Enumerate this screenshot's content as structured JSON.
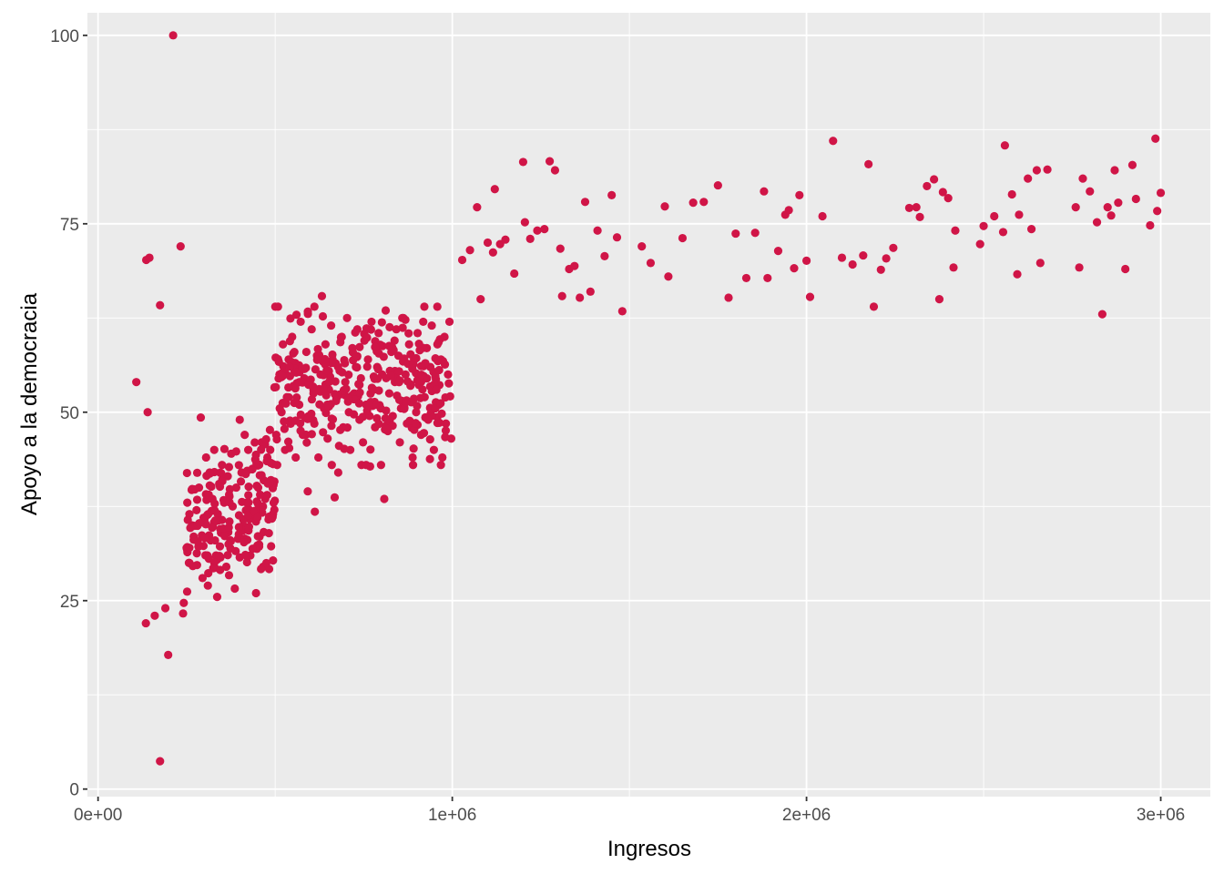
{
  "chart_data": {
    "type": "scatter",
    "xlabel": "Ingresos",
    "ylabel": "Apoyo a la democracia",
    "xlim": [
      -30000,
      3140000
    ],
    "ylim": [
      -1,
      103
    ],
    "x_ticks": [
      {
        "value": 0,
        "label": "0e+00"
      },
      {
        "value": 1000000,
        "label": "1e+06"
      },
      {
        "value": 2000000,
        "label": "2e+06"
      },
      {
        "value": 3000000,
        "label": "3e+06"
      }
    ],
    "y_ticks": [
      {
        "value": 0,
        "label": "0"
      },
      {
        "value": 25,
        "label": "25"
      },
      {
        "value": 50,
        "label": "50"
      },
      {
        "value": 75,
        "label": "75"
      },
      {
        "value": 100,
        "label": "100"
      }
    ],
    "grid": true,
    "panel_background": "#ebebeb",
    "gridline_color": "#ffffff",
    "point_color": "#d01547",
    "series": [
      {
        "points": [
          [
            108000,
            54
          ],
          [
            136000,
            70.2
          ],
          [
            140000,
            50
          ],
          [
            145000,
            70.5
          ],
          [
            175000,
            64.2
          ],
          [
            212000,
            100
          ],
          [
            233000,
            72
          ],
          [
            135000,
            22
          ],
          [
            160000,
            23
          ],
          [
            190000,
            24
          ],
          [
            198000,
            17.8
          ],
          [
            175000,
            3.7
          ],
          [
            240000,
            23.3
          ],
          [
            242000,
            24.7
          ],
          [
            250000,
            32
          ],
          [
            252000,
            38
          ],
          [
            258000,
            30
          ],
          [
            265000,
            35
          ],
          [
            270000,
            33.5
          ],
          [
            278000,
            37
          ],
          [
            285000,
            40
          ],
          [
            290000,
            49.3
          ],
          [
            295000,
            28
          ],
          [
            298000,
            36
          ],
          [
            305000,
            44
          ],
          [
            310000,
            27
          ],
          [
            315000,
            42
          ],
          [
            318000,
            33
          ],
          [
            322000,
            38.5
          ],
          [
            328000,
            45
          ],
          [
            333000,
            31
          ],
          [
            338000,
            36.5
          ],
          [
            342000,
            40.5
          ],
          [
            347000,
            34
          ],
          [
            350000,
            43
          ],
          [
            356000,
            38
          ],
          [
            362000,
            29.5
          ],
          [
            366000,
            41.5
          ],
          [
            371000,
            35.5
          ],
          [
            376000,
            44.5
          ],
          [
            380000,
            37.5
          ],
          [
            386000,
            26.6
          ],
          [
            390000,
            40
          ],
          [
            395000,
            33.2
          ],
          [
            400000,
            49
          ],
          [
            405000,
            42
          ],
          [
            410000,
            35
          ],
          [
            414000,
            47
          ],
          [
            420000,
            38
          ],
          [
            424000,
            45
          ],
          [
            430000,
            31
          ],
          [
            436000,
            42.5
          ],
          [
            442000,
            36
          ],
          [
            446000,
            26
          ],
          [
            452000,
            40
          ],
          [
            456000,
            33.5
          ],
          [
            462000,
            46
          ],
          [
            466000,
            29.5
          ],
          [
            472000,
            38.5
          ],
          [
            478000,
            44
          ],
          [
            483000,
            29.2
          ],
          [
            488000,
            41
          ],
          [
            494000,
            36.5
          ],
          [
            498000,
            53.3
          ],
          [
            503000,
            47
          ],
          [
            508000,
            64
          ],
          [
            512000,
            55
          ],
          [
            518000,
            50
          ],
          [
            522000,
            59
          ],
          [
            528000,
            45
          ],
          [
            533000,
            52
          ],
          [
            538000,
            57
          ],
          [
            543000,
            48.5
          ],
          [
            548000,
            60
          ],
          [
            552000,
            53.5
          ],
          [
            558000,
            44
          ],
          [
            563000,
            56
          ],
          [
            568000,
            51
          ],
          [
            572000,
            62
          ],
          [
            578000,
            47
          ],
          [
            582000,
            54.5
          ],
          [
            588000,
            58
          ],
          [
            592000,
            39.5
          ],
          [
            598000,
            49.5
          ],
          [
            603000,
            61
          ],
          [
            608000,
            53
          ],
          [
            612000,
            36.8
          ],
          [
            618000,
            57.5
          ],
          [
            622000,
            44
          ],
          [
            628000,
            55
          ],
          [
            632000,
            65.4
          ],
          [
            638000,
            50.5
          ],
          [
            642000,
            59
          ],
          [
            648000,
            46.5
          ],
          [
            652000,
            53
          ],
          [
            658000,
            61.5
          ],
          [
            662000,
            57
          ],
          [
            668000,
            38.7
          ],
          [
            672000,
            51.5
          ],
          [
            678000,
            42
          ],
          [
            682000,
            55.5
          ],
          [
            688000,
            60
          ],
          [
            692000,
            48
          ],
          [
            698000,
            54
          ],
          [
            703000,
            62.5
          ],
          [
            708000,
            50
          ],
          [
            712000,
            45
          ],
          [
            718000,
            58.5
          ],
          [
            723000,
            52.5
          ],
          [
            728000,
            56
          ],
          [
            732000,
            61
          ],
          [
            738000,
            49
          ],
          [
            742000,
            54.5
          ],
          [
            748000,
            46
          ],
          [
            752000,
            59.5
          ],
          [
            758000,
            51
          ],
          [
            762000,
            57
          ],
          [
            768000,
            42.8
          ],
          [
            772000,
            62
          ],
          [
            778000,
            53
          ],
          [
            782000,
            48
          ],
          [
            788000,
            56
          ],
          [
            792000,
            60.5
          ],
          [
            798000,
            50.5
          ],
          [
            802000,
            55
          ],
          [
            808000,
            38.5
          ],
          [
            812000,
            63.5
          ],
          [
            818000,
            47.5
          ],
          [
            822000,
            52.5
          ],
          [
            828000,
            58
          ],
          [
            832000,
            49.5
          ],
          [
            838000,
            54
          ],
          [
            842000,
            61
          ],
          [
            848000,
            57.5
          ],
          [
            852000,
            46
          ],
          [
            858000,
            51.5
          ],
          [
            862000,
            62.5
          ],
          [
            868000,
            55
          ],
          [
            872000,
            48.5
          ],
          [
            878000,
            59
          ],
          [
            882000,
            53.5
          ],
          [
            888000,
            44
          ],
          [
            892000,
            57
          ],
          [
            898000,
            50
          ],
          [
            902000,
            60.5
          ],
          [
            908000,
            54.5
          ],
          [
            912000,
            47
          ],
          [
            918000,
            62
          ],
          [
            922000,
            52
          ],
          [
            928000,
            58.5
          ],
          [
            932000,
            49
          ],
          [
            938000,
            56
          ],
          [
            942000,
            61.5
          ],
          [
            948000,
            45
          ],
          [
            952000,
            53
          ],
          [
            958000,
            59
          ],
          [
            962000,
            51
          ],
          [
            968000,
            57
          ],
          [
            972000,
            44
          ],
          [
            978000,
            60
          ],
          [
            982000,
            48.5
          ],
          [
            988000,
            55
          ],
          [
            992000,
            62
          ],
          [
            997000,
            46.5
          ]
        ]
      },
      {
        "points": [
          [
            1028000,
            70.2
          ],
          [
            1050000,
            71.5
          ],
          [
            1070000,
            77.2
          ],
          [
            1080000,
            65
          ],
          [
            1100000,
            72.5
          ],
          [
            1115000,
            71.2
          ],
          [
            1120000,
            79.6
          ],
          [
            1135000,
            72.3
          ],
          [
            1150000,
            72.9
          ],
          [
            1175000,
            68.4
          ],
          [
            1200000,
            83.2
          ],
          [
            1205000,
            75.2
          ],
          [
            1220000,
            73
          ],
          [
            1240000,
            74.1
          ],
          [
            1260000,
            74.3
          ],
          [
            1275000,
            83.3
          ],
          [
            1290000,
            82.1
          ],
          [
            1305000,
            71.7
          ],
          [
            1310000,
            65.4
          ],
          [
            1330000,
            69
          ],
          [
            1345000,
            69.4
          ],
          [
            1360000,
            65.2
          ],
          [
            1375000,
            77.9
          ],
          [
            1390000,
            66
          ],
          [
            1410000,
            74.1
          ],
          [
            1430000,
            70.7
          ],
          [
            1450000,
            78.8
          ],
          [
            1465000,
            73.2
          ],
          [
            1480000,
            63.4
          ],
          [
            1535000,
            72
          ],
          [
            1560000,
            69.8
          ],
          [
            1600000,
            77.3
          ],
          [
            1610000,
            68
          ],
          [
            1650000,
            73.1
          ],
          [
            1680000,
            77.8
          ],
          [
            1710000,
            77.9
          ],
          [
            1750000,
            80.1
          ],
          [
            1780000,
            65.2
          ],
          [
            1800000,
            73.7
          ],
          [
            1830000,
            67.8
          ],
          [
            1855000,
            73.8
          ],
          [
            1880000,
            79.3
          ],
          [
            1890000,
            67.8
          ],
          [
            1920000,
            71.4
          ],
          [
            1940000,
            76.2
          ],
          [
            1950000,
            76.8
          ],
          [
            1965000,
            69.1
          ],
          [
            1980000,
            78.8
          ],
          [
            2000000,
            70.1
          ],
          [
            2010000,
            65.3
          ],
          [
            2045000,
            76
          ],
          [
            2075000,
            86
          ],
          [
            2100000,
            70.5
          ],
          [
            2130000,
            69.6
          ],
          [
            2160000,
            70.8
          ],
          [
            2175000,
            82.9
          ],
          [
            2190000,
            64
          ],
          [
            2210000,
            68.9
          ],
          [
            2225000,
            70.4
          ],
          [
            2245000,
            71.8
          ],
          [
            2290000,
            77.1
          ],
          [
            2310000,
            77.2
          ],
          [
            2320000,
            75.9
          ],
          [
            2340000,
            80
          ],
          [
            2360000,
            80.9
          ],
          [
            2375000,
            65
          ],
          [
            2385000,
            79.2
          ],
          [
            2400000,
            78.4
          ],
          [
            2415000,
            69.2
          ],
          [
            2420000,
            74.1
          ],
          [
            2490000,
            72.3
          ],
          [
            2500000,
            74.7
          ],
          [
            2530000,
            76
          ],
          [
            2555000,
            73.9
          ],
          [
            2560000,
            85.4
          ],
          [
            2580000,
            78.9
          ],
          [
            2595000,
            68.3
          ],
          [
            2600000,
            76.2
          ],
          [
            2625000,
            81
          ],
          [
            2635000,
            74.3
          ],
          [
            2650000,
            82.1
          ],
          [
            2660000,
            69.8
          ],
          [
            2680000,
            82.2
          ],
          [
            2760000,
            77.2
          ],
          [
            2770000,
            69.2
          ],
          [
            2780000,
            81
          ],
          [
            2800000,
            79.3
          ],
          [
            2820000,
            75.2
          ],
          [
            2835000,
            63
          ],
          [
            2850000,
            77.2
          ],
          [
            2860000,
            76.1
          ],
          [
            2870000,
            82.1
          ],
          [
            2880000,
            77.8
          ],
          [
            2900000,
            69
          ],
          [
            2920000,
            82.8
          ],
          [
            2930000,
            78.3
          ],
          [
            2970000,
            74.8
          ],
          [
            2985000,
            86.3
          ],
          [
            2990000,
            76.7
          ],
          [
            3000000,
            79.1
          ]
        ]
      }
    ]
  }
}
